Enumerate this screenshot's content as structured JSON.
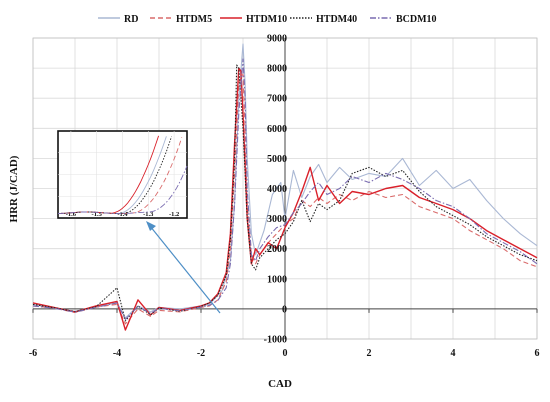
{
  "chart_data": {
    "type": "line",
    "title": "",
    "xlabel": "CAD",
    "ylabel": "HRR (J/CAD)",
    "xlim": [
      -6,
      6
    ],
    "ylim": [
      -1000,
      9000
    ],
    "x_ticks": [
      -6,
      -4,
      -2,
      0,
      2,
      4,
      6
    ],
    "y_ticks": [
      -1000,
      0,
      1000,
      2000,
      3000,
      4000,
      5000,
      6000,
      7000,
      8000,
      9000
    ],
    "grid": "vertical and horizontal",
    "legend_position": "top",
    "series": [
      {
        "name": "RD",
        "color": "#aab8d4",
        "style": "solid",
        "x": [
          -6,
          -5.5,
          -5,
          -4.5,
          -4,
          -3.8,
          -3.5,
          -3.2,
          -3,
          -2.5,
          -2,
          -1.8,
          -1.5,
          -1.3,
          -1.2,
          -1.1,
          -1.0,
          -0.95,
          -0.9,
          -0.8,
          -0.7,
          -0.6,
          -0.5,
          -0.3,
          -0.1,
          0,
          0.2,
          0.4,
          0.6,
          0.8,
          1.0,
          1.3,
          1.6,
          2.0,
          2.4,
          2.8,
          3.2,
          3.6,
          4.0,
          4.4,
          4.8,
          5.2,
          5.6,
          6
        ],
        "y": [
          150,
          20,
          -80,
          80,
          200,
          -300,
          100,
          -100,
          50,
          0,
          100,
          150,
          600,
          1600,
          3500,
          7000,
          8800,
          7500,
          5000,
          2500,
          1800,
          2200,
          2600,
          3800,
          4200,
          3000,
          4600,
          3700,
          4400,
          4800,
          4200,
          4700,
          4300,
          4500,
          4400,
          5000,
          4100,
          4600,
          4000,
          4300,
          3600,
          3000,
          2500,
          2100
        ]
      },
      {
        "name": "HTDM5",
        "color": "#d96b6b",
        "style": "dashed",
        "x": [
          -6,
          -5.5,
          -5,
          -4.5,
          -4,
          -3.8,
          -3.5,
          -3.2,
          -3,
          -2.5,
          -2,
          -1.8,
          -1.6,
          -1.4,
          -1.3,
          -1.2,
          -1.1,
          -1.0,
          -0.95,
          -0.9,
          -0.8,
          -0.7,
          -0.6,
          -0.4,
          -0.2,
          0,
          0.2,
          0.4,
          0.6,
          0.8,
          1.0,
          1.3,
          1.6,
          2.0,
          2.4,
          2.8,
          3.2,
          3.6,
          4.0,
          4.4,
          4.8,
          5.2,
          5.6,
          6
        ],
        "y": [
          100,
          30,
          -120,
          60,
          150,
          -500,
          0,
          -250,
          -50,
          -100,
          50,
          100,
          300,
          900,
          2000,
          4500,
          7500,
          7800,
          6000,
          3500,
          1800,
          1500,
          1800,
          2200,
          2500,
          2800,
          3000,
          3600,
          3400,
          3700,
          3500,
          3800,
          3600,
          3900,
          3700,
          3800,
          3400,
          3200,
          3000,
          2600,
          2300,
          2000,
          1600,
          1400
        ]
      },
      {
        "name": "HTDM10",
        "color": "#d9202a",
        "style": "solid",
        "x": [
          -6,
          -5.5,
          -5,
          -4.5,
          -4,
          -3.8,
          -3.5,
          -3.2,
          -3,
          -2.5,
          -2,
          -1.8,
          -1.6,
          -1.4,
          -1.3,
          -1.2,
          -1.1,
          -1.05,
          -1.0,
          -0.9,
          -0.8,
          -0.7,
          -0.6,
          -0.4,
          -0.2,
          0,
          0.2,
          0.4,
          0.6,
          0.8,
          1.0,
          1.3,
          1.6,
          2.0,
          2.4,
          2.8,
          3.2,
          3.6,
          4.0,
          4.4,
          4.8,
          5.2,
          5.6,
          6
        ],
        "y": [
          200,
          50,
          -100,
          100,
          250,
          -700,
          300,
          -200,
          50,
          -50,
          100,
          200,
          500,
          1200,
          2500,
          5500,
          8000,
          7900,
          6500,
          3000,
          1500,
          2000,
          1800,
          2200,
          2000,
          2700,
          3200,
          3900,
          4700,
          3600,
          4100,
          3500,
          3900,
          3800,
          4000,
          4100,
          3700,
          3500,
          3300,
          3000,
          2600,
          2300,
          2000,
          1700
        ]
      },
      {
        "name": "HTDM40",
        "color": "#222222",
        "style": "dotted",
        "x": [
          -6,
          -5.5,
          -5,
          -4.5,
          -4,
          -3.8,
          -3.5,
          -3.2,
          -3,
          -2.5,
          -2,
          -1.8,
          -1.6,
          -1.4,
          -1.3,
          -1.2,
          -1.15,
          -1.1,
          -1.0,
          -0.9,
          -0.8,
          -0.7,
          -0.6,
          -0.4,
          -0.2,
          0,
          0.2,
          0.4,
          0.6,
          0.8,
          1.0,
          1.3,
          1.6,
          2.0,
          2.4,
          2.8,
          3.2,
          3.6,
          4.0,
          4.4,
          4.8,
          5.2,
          5.6,
          6
        ],
        "y": [
          150,
          40,
          -90,
          70,
          700,
          -400,
          100,
          -200,
          30,
          -80,
          80,
          200,
          450,
          1100,
          2300,
          5000,
          8100,
          8000,
          6000,
          3000,
          1500,
          1300,
          1700,
          2000,
          2300,
          2500,
          2900,
          3600,
          2900,
          3500,
          3300,
          3600,
          4500,
          4700,
          4400,
          4600,
          3900,
          3400,
          3100,
          2800,
          2400,
          2100,
          1800,
          1600
        ]
      },
      {
        "name": "BCDM10",
        "color": "#7a6cb0",
        "style": "dashdot",
        "x": [
          -6,
          -5.5,
          -5,
          -4.5,
          -4,
          -3.8,
          -3.5,
          -3.2,
          -3,
          -2.5,
          -2,
          -1.8,
          -1.6,
          -1.4,
          -1.3,
          -1.2,
          -1.1,
          -1.0,
          -0.95,
          -0.9,
          -0.8,
          -0.7,
          -0.6,
          -0.4,
          -0.2,
          0,
          0.2,
          0.4,
          0.6,
          0.8,
          1.0,
          1.3,
          1.6,
          2.0,
          2.4,
          2.8,
          3.2,
          3.6,
          4.0,
          4.4,
          4.8,
          5.2,
          5.6,
          6
        ],
        "y": [
          100,
          20,
          -110,
          50,
          200,
          -350,
          80,
          -150,
          20,
          -60,
          60,
          120,
          280,
          700,
          1500,
          3500,
          6500,
          8300,
          7000,
          4000,
          1800,
          1600,
          2000,
          2400,
          2700,
          2800,
          3200,
          3500,
          3900,
          4200,
          3800,
          4000,
          4400,
          4200,
          4500,
          4300,
          4000,
          3600,
          3400,
          3000,
          2500,
          2200,
          1900,
          1500
        ]
      }
    ],
    "inset": {
      "xlim": [
        -1.65,
        -1.15
      ],
      "ylim": [
        0,
        1
      ],
      "x_ticks": [
        -1.6,
        -1.5,
        -1.4,
        -1.3,
        -1.2
      ],
      "x_tick_labels": [
        "-1.6",
        "-1.5",
        "-1.4",
        "-1.3",
        "-1.2"
      ]
    }
  }
}
